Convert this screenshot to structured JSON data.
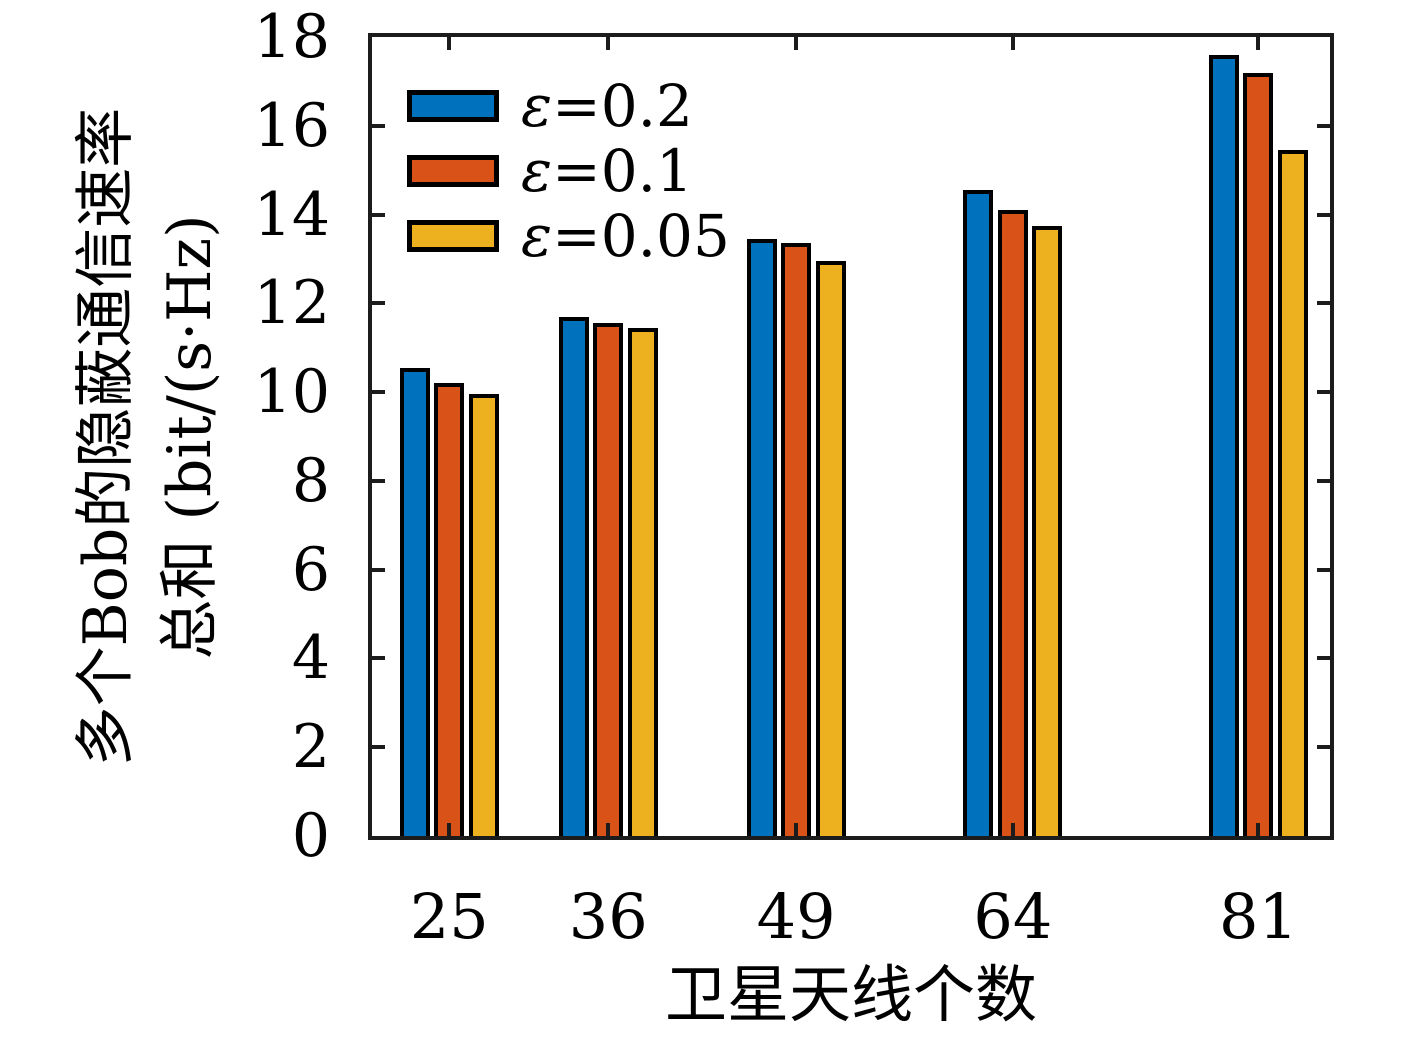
{
  "figure": {
    "background_color": "#ffffff",
    "axis_color": "#1c1c1c",
    "bar_edge_color": "#000000"
  },
  "chart_data": {
    "type": "bar",
    "title": "",
    "xlabel": "卫星天线个数",
    "ylabel_line1": "多个Bob的隐蔽通信速率",
    "ylabel_line2": "总和 (bit/(s·Hz)",
    "categories": [
      "25",
      "36",
      "49",
      "64",
      "81"
    ],
    "x_values": [
      25,
      36,
      49,
      64,
      81
    ],
    "xlim": [
      19.65,
      85.95
    ],
    "ylim": [
      0,
      18
    ],
    "y_ticks": [
      0,
      2,
      4,
      6,
      8,
      10,
      12,
      14,
      16,
      18
    ],
    "y_tick_labels": [
      "0",
      "2",
      "4",
      "6",
      "8",
      "10",
      "12",
      "14",
      "16",
      "18"
    ],
    "grid": false,
    "legend_position": "inside-top-left",
    "series": [
      {
        "name": "ε=0.2",
        "color": "#0072BD",
        "values": [
          10.55,
          11.7,
          13.45,
          14.55,
          17.6
        ]
      },
      {
        "name": "ε=0.1",
        "color": "#D95319",
        "values": [
          10.2,
          11.55,
          13.35,
          14.1,
          17.2
        ]
      },
      {
        "name": "ε=0.05",
        "color": "#EDB120",
        "values": [
          9.95,
          11.45,
          12.95,
          13.75,
          15.45
        ]
      }
    ]
  }
}
